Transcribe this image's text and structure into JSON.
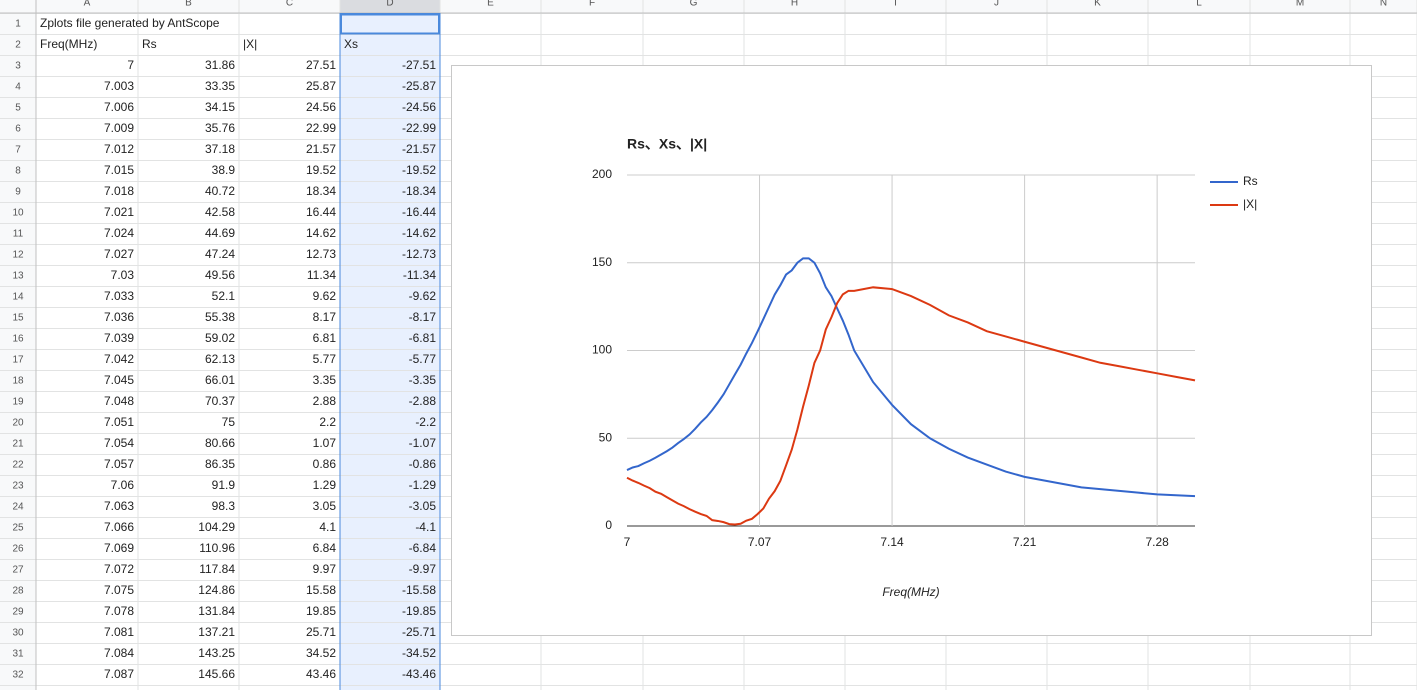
{
  "spreadsheet": {
    "column_headers": [
      "A",
      "B",
      "C",
      "D",
      "E",
      "F",
      "G",
      "H",
      "I",
      "J",
      "K",
      "L",
      "M",
      "N"
    ],
    "rows": [
      {
        "number": 1,
        "cells": [
          "Zplots file generated by AntScope"
        ]
      },
      {
        "number": 2,
        "cells": [
          "Freq(MHz)",
          "Rs",
          "|X|",
          "Xs"
        ]
      },
      {
        "number": 3,
        "cells": [
          7,
          31.86,
          27.51,
          -27.51
        ]
      },
      {
        "number": 4,
        "cells": [
          7.003,
          33.35,
          25.87,
          -25.87
        ]
      },
      {
        "number": 5,
        "cells": [
          7.006,
          34.15,
          24.56,
          -24.56
        ]
      },
      {
        "number": 6,
        "cells": [
          7.009,
          35.76,
          22.99,
          -22.99
        ]
      },
      {
        "number": 7,
        "cells": [
          7.012,
          37.18,
          21.57,
          -21.57
        ]
      },
      {
        "number": 8,
        "cells": [
          7.015,
          38.9,
          19.52,
          -19.52
        ]
      },
      {
        "number": 9,
        "cells": [
          7.018,
          40.72,
          18.34,
          -18.34
        ]
      },
      {
        "number": 10,
        "cells": [
          7.021,
          42.58,
          16.44,
          -16.44
        ]
      },
      {
        "number": 11,
        "cells": [
          7.024,
          44.69,
          14.62,
          -14.62
        ]
      },
      {
        "number": 12,
        "cells": [
          7.027,
          47.24,
          12.73,
          -12.73
        ]
      },
      {
        "number": 13,
        "cells": [
          7.03,
          49.56,
          11.34,
          -11.34
        ]
      },
      {
        "number": 14,
        "cells": [
          7.033,
          52.1,
          9.62,
          -9.62
        ]
      },
      {
        "number": 15,
        "cells": [
          7.036,
          55.38,
          8.17,
          -8.17
        ]
      },
      {
        "number": 16,
        "cells": [
          7.039,
          59.02,
          6.81,
          -6.81
        ]
      },
      {
        "number": 17,
        "cells": [
          7.042,
          62.13,
          5.77,
          -5.77
        ]
      },
      {
        "number": 18,
        "cells": [
          7.045,
          66.01,
          3.35,
          -3.35
        ]
      },
      {
        "number": 19,
        "cells": [
          7.048,
          70.37,
          2.88,
          -2.88
        ]
      },
      {
        "number": 20,
        "cells": [
          7.051,
          75,
          2.2,
          -2.2
        ]
      },
      {
        "number": 21,
        "cells": [
          7.054,
          80.66,
          1.07,
          -1.07
        ]
      },
      {
        "number": 22,
        "cells": [
          7.057,
          86.35,
          0.86,
          -0.86
        ]
      },
      {
        "number": 23,
        "cells": [
          7.06,
          91.9,
          1.29,
          -1.29
        ]
      },
      {
        "number": 24,
        "cells": [
          7.063,
          98.3,
          3.05,
          -3.05
        ]
      },
      {
        "number": 25,
        "cells": [
          7.066,
          104.29,
          4.1,
          -4.1
        ]
      },
      {
        "number": 26,
        "cells": [
          7.069,
          110.96,
          6.84,
          -6.84
        ]
      },
      {
        "number": 27,
        "cells": [
          7.072,
          117.84,
          9.97,
          -9.97
        ]
      },
      {
        "number": 28,
        "cells": [
          7.075,
          124.86,
          15.58,
          -15.58
        ]
      },
      {
        "number": 29,
        "cells": [
          7.078,
          131.84,
          19.85,
          -19.85
        ]
      },
      {
        "number": 30,
        "cells": [
          7.081,
          137.21,
          25.71,
          -25.71
        ]
      },
      {
        "number": 31,
        "cells": [
          7.084,
          143.25,
          34.52,
          -34.52
        ]
      },
      {
        "number": 32,
        "cells": [
          7.087,
          145.66,
          43.46,
          -43.46
        ]
      }
    ]
  },
  "chart_data": {
    "type": "line",
    "title": "Rs、Xs、|X|",
    "x_label": "Freq(MHz)",
    "x": [
      7,
      7.003,
      7.006,
      7.009,
      7.012,
      7.015,
      7.018,
      7.021,
      7.024,
      7.027,
      7.03,
      7.033,
      7.036,
      7.039,
      7.042,
      7.045,
      7.048,
      7.051,
      7.054,
      7.057,
      7.06,
      7.063,
      7.066,
      7.069,
      7.072,
      7.075,
      7.078,
      7.081,
      7.084,
      7.087,
      7.09,
      7.093,
      7.096,
      7.099,
      7.102,
      7.105,
      7.108,
      7.111,
      7.114,
      7.117,
      7.12,
      7.13,
      7.14,
      7.15,
      7.16,
      7.17,
      7.18,
      7.19,
      7.2,
      7.21,
      7.22,
      7.23,
      7.24,
      7.25,
      7.26,
      7.27,
      7.28,
      7.29,
      7.3
    ],
    "series": [
      {
        "name": "Rs",
        "color": "#3366cc",
        "values": [
          31.86,
          33.35,
          34.15,
          35.76,
          37.18,
          38.9,
          40.72,
          42.58,
          44.69,
          47.24,
          49.56,
          52.1,
          55.38,
          59.02,
          62.13,
          66.01,
          70.37,
          75,
          80.66,
          86.35,
          91.9,
          98.3,
          104.29,
          110.96,
          117.84,
          124.86,
          131.84,
          137.21,
          143.25,
          145.66,
          150,
          152.5,
          152.5,
          150,
          144,
          136,
          131,
          124,
          117,
          109,
          100,
          82,
          69,
          58,
          50,
          44,
          39,
          35,
          31,
          28,
          26,
          24,
          22,
          21,
          20,
          19,
          18,
          17.5,
          17
        ]
      },
      {
        "name": "|X|",
        "color": "#dc3912",
        "values": [
          27.51,
          25.87,
          24.56,
          22.99,
          21.57,
          19.52,
          18.34,
          16.44,
          14.62,
          12.73,
          11.34,
          9.62,
          8.17,
          6.81,
          5.77,
          3.35,
          2.88,
          2.2,
          1.07,
          0.86,
          1.29,
          3.05,
          4.1,
          6.84,
          9.97,
          15.58,
          19.85,
          25.71,
          34.52,
          43.46,
          55,
          68,
          80,
          93,
          100,
          112,
          119,
          127,
          132,
          134,
          134,
          136,
          135,
          131,
          126,
          120,
          116,
          111,
          108,
          105,
          102,
          99,
          96,
          93,
          91,
          89,
          87,
          85,
          83
        ]
      }
    ],
    "xlim": [
      7,
      7.3
    ],
    "xticks": [
      7,
      7.07,
      7.14,
      7.21,
      7.28
    ],
    "ylim": [
      0,
      200
    ],
    "yticks": [
      0,
      50,
      100,
      150,
      200
    ],
    "grid": true,
    "legend": "right"
  }
}
